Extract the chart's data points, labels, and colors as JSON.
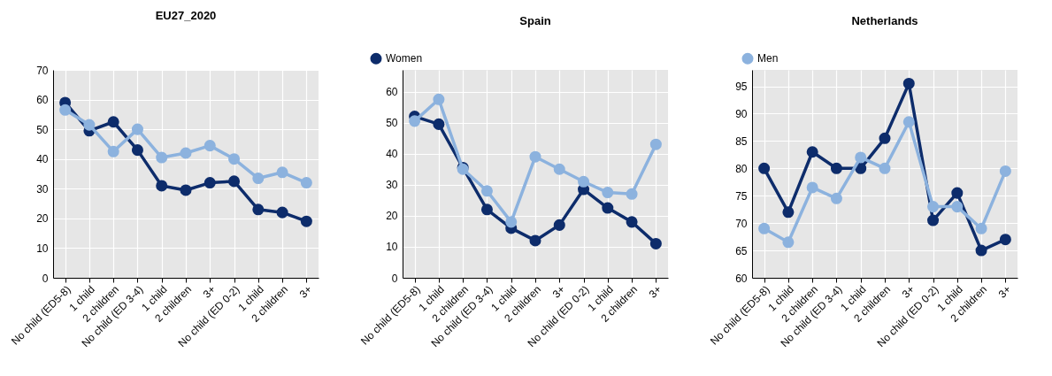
{
  "chart_data": [
    {
      "type": "line",
      "title": "EU27_2020",
      "categories": [
        "No child (ED5-8)",
        "1 child",
        "2 children",
        "No child (ED 3-4)",
        "1 child",
        "2 children",
        "3+",
        "No child (ED 0-2)",
        "1 child",
        "2 children",
        "3+"
      ],
      "ylim": [
        0,
        70
      ],
      "yticks": [
        0,
        10,
        20,
        30,
        40,
        50,
        60,
        70
      ],
      "grid": true,
      "legend": "top",
      "marker": "circle",
      "line_style": "solid",
      "series": [
        {
          "name": "Women",
          "color": "#0d2c6b",
          "values": [
            59,
            49.5,
            52.5,
            43,
            31,
            29.5,
            32,
            32.5,
            23,
            22,
            19
          ]
        },
        {
          "name": "Men",
          "color": "#8cb2de",
          "values": [
            56.5,
            51.5,
            42.5,
            50,
            40.5,
            42,
            44.5,
            40,
            33.5,
            35.5,
            32
          ]
        }
      ]
    },
    {
      "type": "line",
      "title": "Spain",
      "categories": [
        "No child (ED5-8)",
        "1 child",
        "2 children",
        "No child (ED 3-4)",
        "1 child",
        "2 children",
        "3+",
        "No child (ED 0-2)",
        "1 child",
        "2 children",
        "3+"
      ],
      "ylim": [
        0,
        67
      ],
      "yticks": [
        0,
        10,
        20,
        30,
        40,
        50,
        60
      ],
      "grid": true,
      "marker": "circle",
      "line_style": "solid",
      "series": [
        {
          "color": "#0d2c6b",
          "values": [
            52,
            49.5,
            35.5,
            22,
            16,
            12,
            17,
            28.5,
            22.5,
            18,
            11
          ]
        },
        {
          "color": "#8cb2de",
          "values": [
            50.5,
            57.5,
            35,
            28,
            18,
            39,
            35,
            31,
            27.5,
            27,
            43
          ]
        }
      ]
    },
    {
      "type": "line",
      "title": "Netherlands",
      "categories": [
        "No child (ED5-8)",
        "1 child",
        "2 children",
        "No child (ED 3-4)",
        "1 child",
        "2 children",
        "3+",
        "No child (ED 0-2)",
        "1 child",
        "2 children",
        "3+"
      ],
      "ylim": [
        60,
        98
      ],
      "yticks": [
        60,
        65,
        70,
        75,
        80,
        85,
        90,
        95
      ],
      "grid": true,
      "marker": "circle",
      "line_style": "solid",
      "series": [
        {
          "color": "#0d2c6b",
          "values": [
            80,
            72,
            83,
            80,
            80,
            85.5,
            95.5,
            70.5,
            75.5,
            65,
            67
          ]
        },
        {
          "color": "#8cb2de",
          "values": [
            69,
            66.5,
            76.5,
            74.5,
            82,
            80,
            88.5,
            73,
            73,
            69,
            79.5
          ]
        }
      ]
    }
  ]
}
